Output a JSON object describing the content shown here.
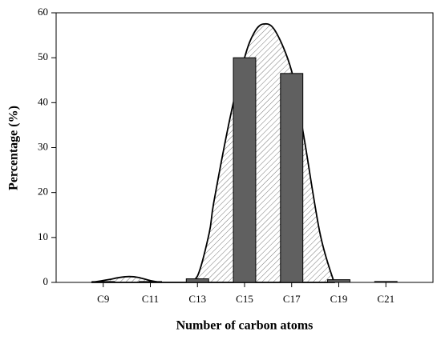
{
  "chart_data": {
    "type": "bar",
    "x_label": "Number of carbon atoms",
    "y_label": "Percentage (%)",
    "xlim": [
      7,
      23
    ],
    "ylim": [
      0,
      60
    ],
    "xticks": [
      {
        "value": 9,
        "label": "C9"
      },
      {
        "value": 11,
        "label": "C11"
      },
      {
        "value": 13,
        "label": "C13"
      },
      {
        "value": 15,
        "label": "C15"
      },
      {
        "value": 17,
        "label": "C17"
      },
      {
        "value": 19,
        "label": "C19"
      },
      {
        "value": 21,
        "label": "C21"
      }
    ],
    "yticks": [
      0,
      10,
      20,
      30,
      40,
      50,
      60
    ],
    "series": [
      {
        "type": "area",
        "color": "#ffffff",
        "hatch": true,
        "x": [
          8.5,
          9.2,
          9.7,
          10.1,
          10.5,
          11,
          11.5,
          12.5,
          13,
          13.5,
          13.7,
          14.4,
          15,
          15.4,
          15.8,
          16.3,
          17,
          17.5,
          18.2,
          18.8
        ],
        "values": [
          0,
          0.6,
          1.1,
          1.3,
          1.1,
          0.4,
          0,
          0,
          1.4,
          11,
          18,
          37,
          50,
          55.5,
          57.5,
          56,
          47,
          33,
          11,
          0
        ]
      },
      {
        "type": "bar",
        "color": "#606060",
        "x": [
          9,
          11,
          13,
          15,
          17,
          19,
          21
        ],
        "values": [
          0.2,
          0.2,
          0.8,
          50,
          46.5,
          0.6,
          0.2
        ]
      }
    ]
  }
}
